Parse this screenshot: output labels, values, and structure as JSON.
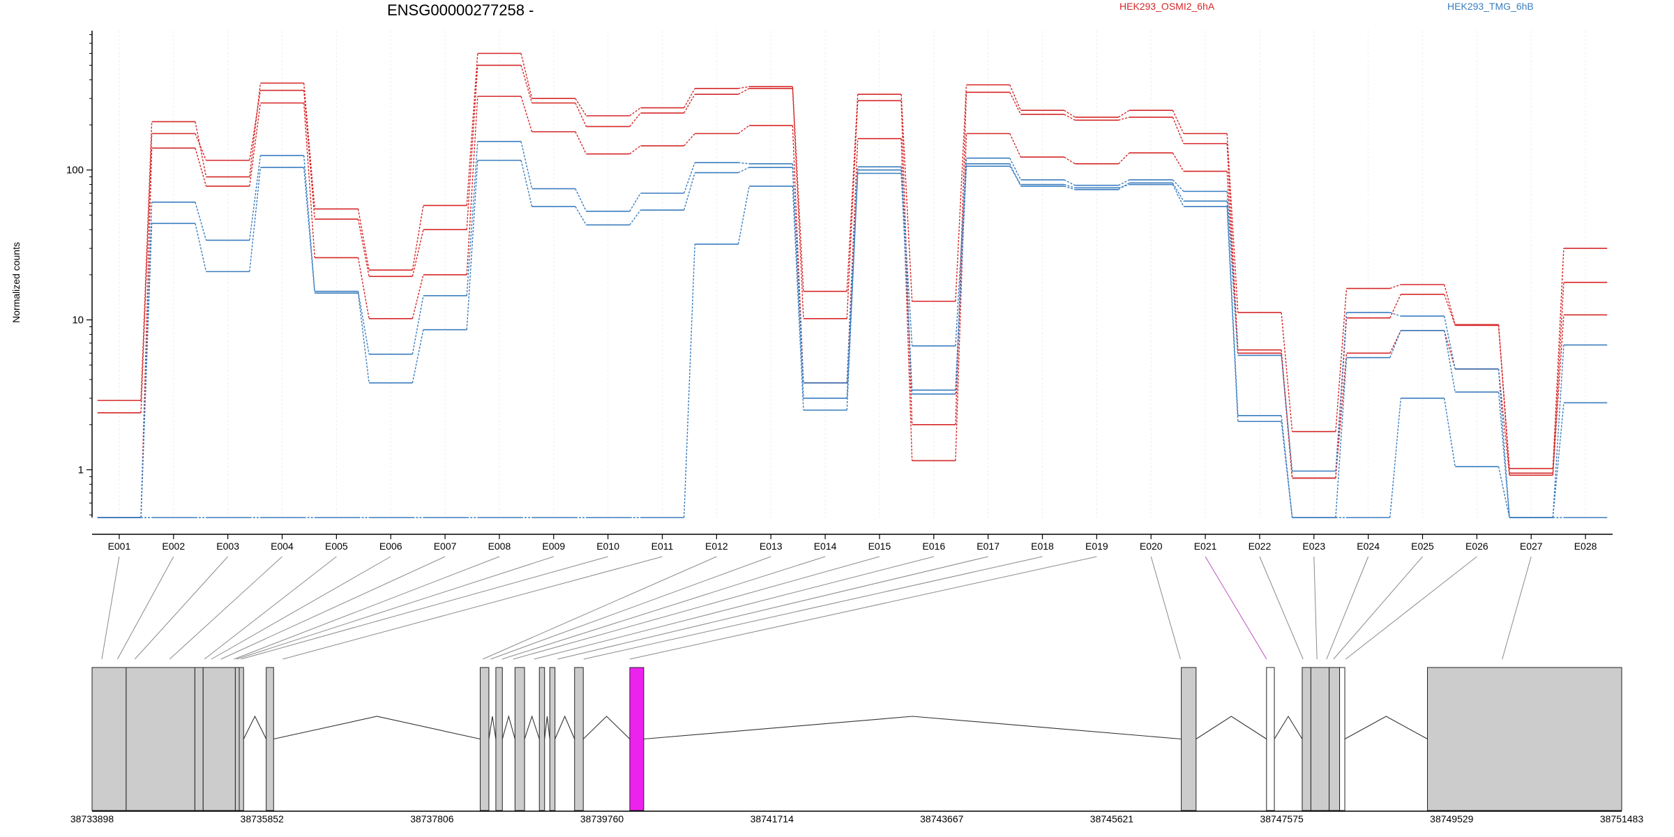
{
  "header": {
    "gene_title": "ENSG00000277258 -",
    "legend": [
      {
        "label": "HEK293_OSMI2_6hA",
        "color": "#d62728"
      },
      {
        "label": "HEK293_TMG_6hB",
        "color": "#3a7dbf"
      }
    ]
  },
  "chart_data": {
    "type": "line",
    "ylabel": "Normalized counts",
    "ylim": [
      0.48,
      850
    ],
    "yscale": "log",
    "yticks": [
      {
        "value": 1,
        "label": "1"
      },
      {
        "value": 10,
        "label": "10"
      },
      {
        "value": 100,
        "label": "100"
      }
    ],
    "categories": [
      "E001",
      "E002",
      "E003",
      "E004",
      "E005",
      "E006",
      "E007",
      "E008",
      "E009",
      "E010",
      "E011",
      "E012",
      "E013",
      "E014",
      "E015",
      "E016",
      "E017",
      "E018",
      "E019",
      "E020",
      "E021",
      "E022",
      "E023",
      "E024",
      "E025",
      "E026",
      "E027",
      "E028"
    ],
    "highlight_exon": "E021",
    "series": [
      {
        "group": "HEK293_OSMI2_6hA",
        "color": "#d62728",
        "values": [
          2.9,
          210,
          90,
          380,
          55,
          21.5,
          58,
          600,
          300,
          230,
          260,
          350,
          360,
          15.5,
          320,
          13.3,
          370,
          250,
          225,
          250,
          175,
          11.2,
          1.8,
          16.2,
          17.2,
          9.3,
          1.02,
          30
        ]
      },
      {
        "group": "HEK293_OSMI2_6hA",
        "color": "#d62728",
        "values": [
          2.4,
          175,
          116,
          340,
          47,
          19.5,
          40,
          500,
          280,
          195,
          240,
          320,
          350,
          10.2,
          290,
          2.0,
          330,
          235,
          215,
          225,
          150,
          6.3,
          0.88,
          10.3,
          14.8,
          9.2,
          0.95,
          17.8
        ]
      },
      {
        "group": "HEK293_OSMI2_6hA",
        "color": "#d62728",
        "values": [
          0.48,
          140,
          78,
          280,
          26,
          10.2,
          20,
          310,
          180,
          128,
          145,
          175,
          198,
          3.8,
          162,
          1.15,
          175,
          122,
          110,
          130,
          98,
          6.0,
          0.88,
          6.0,
          8.5,
          4.7,
          0.92,
          10.8
        ]
      },
      {
        "group": "HEK293_TMG_6hB",
        "color": "#3a7dbf",
        "values": [
          0.48,
          61,
          34,
          125,
          15.5,
          5.9,
          14.5,
          155,
          75,
          53,
          70,
          112,
          110,
          3.8,
          105,
          6.7,
          120,
          86,
          79,
          86,
          72,
          5.8,
          0.98,
          11.2,
          10.6,
          4.7,
          0.48,
          6.8
        ]
      },
      {
        "group": "HEK293_TMG_6hB",
        "color": "#3a7dbf",
        "values": [
          0.48,
          44,
          21,
          104,
          15.1,
          3.8,
          8.6,
          116,
          57,
          43,
          54,
          96,
          104,
          3.0,
          95,
          3.4,
          110,
          78,
          74,
          82,
          62,
          2.3,
          0.48,
          5.6,
          8.5,
          3.3,
          0.48,
          2.8
        ]
      },
      {
        "group": "HEK293_TMG_6hB",
        "color": "#3a7dbf",
        "values": [
          0.48,
          0.48,
          0.48,
          0.48,
          0.48,
          0.48,
          0.48,
          0.48,
          0.48,
          0.48,
          0.48,
          32,
          78,
          2.5,
          100,
          3.2,
          106,
          80,
          76,
          80,
          57,
          2.1,
          0.48,
          0.48,
          3.0,
          1.05,
          0.48,
          0.48
        ]
      }
    ],
    "genomic_axis": {
      "start": 38733898,
      "end": 38751483,
      "ticks": [
        {
          "value": 38733898,
          "label": "38733898"
        },
        {
          "value": 38735852,
          "label": "38735852"
        },
        {
          "value": 38737806,
          "label": "38737806"
        },
        {
          "value": 38739760,
          "label": "38739760"
        },
        {
          "value": 38741714,
          "label": "38741714"
        },
        {
          "value": 38743667,
          "label": "38743667"
        },
        {
          "value": 38745621,
          "label": "38745621"
        },
        {
          "value": 38747575,
          "label": "38747575"
        },
        {
          "value": 38749529,
          "label": "38749529"
        },
        {
          "value": 38751483,
          "label": "38751483"
        }
      ]
    },
    "exon_features": [
      {
        "start": 38733898,
        "end": 38734290,
        "fill": "#cccccc"
      },
      {
        "start": 38734290,
        "end": 38735080,
        "fill": "#cccccc"
      },
      {
        "start": 38735080,
        "end": 38735175,
        "fill": "#cccccc"
      },
      {
        "start": 38735175,
        "end": 38735545,
        "fill": "#cccccc"
      },
      {
        "start": 38735545,
        "end": 38735590,
        "fill": "#cccccc"
      },
      {
        "start": 38735590,
        "end": 38735640,
        "fill": "#cccccc"
      },
      {
        "start": 38735900,
        "end": 38735985,
        "fill": "#cccccc"
      },
      {
        "start": 38738360,
        "end": 38738460,
        "fill": "#cccccc"
      },
      {
        "start": 38738540,
        "end": 38738615,
        "fill": "#cccccc"
      },
      {
        "start": 38738760,
        "end": 38738870,
        "fill": "#cccccc"
      },
      {
        "start": 38739040,
        "end": 38739100,
        "fill": "#cccccc"
      },
      {
        "start": 38739160,
        "end": 38739220,
        "fill": "#cccccc"
      },
      {
        "start": 38739445,
        "end": 38739545,
        "fill": "#cccccc"
      },
      {
        "start": 38740080,
        "end": 38740240,
        "fill": "#ee22ee"
      },
      {
        "start": 38746420,
        "end": 38746590,
        "fill": "#cccccc"
      },
      {
        "start": 38747400,
        "end": 38747490,
        "fill": "#ffffff"
      },
      {
        "start": 38747810,
        "end": 38747910,
        "fill": "#cccccc"
      },
      {
        "start": 38747910,
        "end": 38748120,
        "fill": "#cccccc"
      },
      {
        "start": 38748120,
        "end": 38748240,
        "fill": "#cccccc"
      },
      {
        "start": 38748240,
        "end": 38748300,
        "fill": "#ffffff"
      },
      {
        "start": 38749250,
        "end": 38751483,
        "fill": "#cccccc"
      }
    ],
    "introns": [
      [
        38735640,
        38735900
      ],
      [
        38735985,
        38738360
      ],
      [
        38738460,
        38738540
      ],
      [
        38738615,
        38738760
      ],
      [
        38738870,
        38739040
      ],
      [
        38739100,
        38739160
      ],
      [
        38739220,
        38739445
      ],
      [
        38739545,
        38740080
      ],
      [
        38740240,
        38746420
      ],
      [
        38746590,
        38747400
      ],
      [
        38747490,
        38747810
      ],
      [
        38748300,
        38749250
      ]
    ],
    "exon_connectors": [
      38734010,
      38734190,
      38734390,
      38734790,
      38735190,
      38735270,
      38735380,
      38735530,
      38735560,
      38735610,
      38736090,
      38738390,
      38738480,
      38738610,
      38738740,
      38738980,
      38739250,
      38739550,
      38740080,
      38746410,
      38747400,
      38747820,
      38747980,
      38748090,
      38748170,
      38748310,
      38750110
    ]
  }
}
